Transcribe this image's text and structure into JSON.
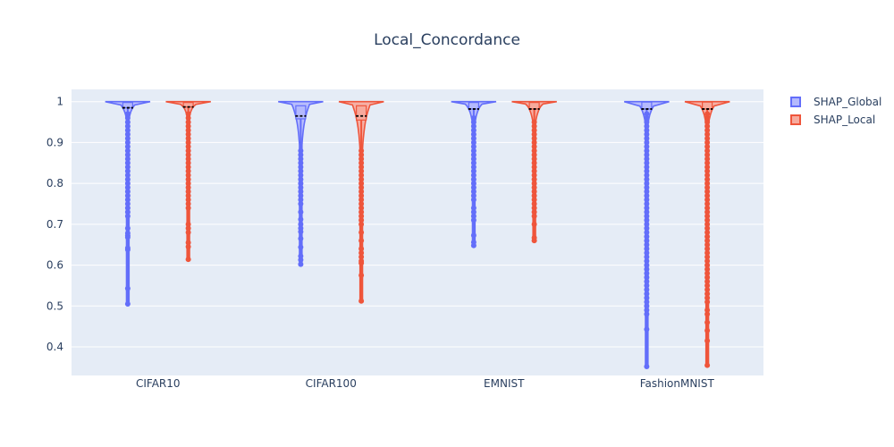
{
  "chart_data": {
    "type": "violin",
    "title": "Local_Concordance",
    "xlabel": "",
    "ylabel": "",
    "categories": [
      "CIFAR10",
      "CIFAR100",
      "EMNIST",
      "FashionMNIST"
    ],
    "ylim": [
      0.33,
      1.03
    ],
    "yticks": [
      0.4,
      0.5,
      0.6,
      0.7,
      0.8,
      0.9,
      1
    ],
    "ytick_labels": [
      "0.4",
      "0.5",
      "0.6",
      "0.7",
      "0.8",
      "0.9",
      "1"
    ],
    "grid": true,
    "legend_position": "top-right",
    "series": [
      {
        "name": "SHAP_Global",
        "color": "#636efa",
        "fill": "#b4b9fd",
        "stats": [
          {
            "category": "CIFAR10",
            "median": 0.985,
            "q1": 0.985,
            "q3": 0.998,
            "min": 0.505,
            "max": 1.0,
            "outliers": [
              0.505,
              0.543,
              0.638,
              0.642,
              0.668,
              0.672,
              0.678,
              0.69,
              0.72,
              0.73,
              0.74,
              0.75,
              0.76,
              0.77,
              0.78,
              0.79,
              0.8,
              0.81,
              0.82,
              0.83,
              0.84,
              0.85,
              0.86,
              0.87,
              0.88,
              0.89,
              0.9,
              0.91,
              0.92,
              0.93,
              0.94,
              0.95,
              0.96,
              0.97
            ]
          },
          {
            "category": "CIFAR100",
            "median": 0.965,
            "q1": 0.958,
            "q3": 0.99,
            "min": 0.602,
            "max": 1.0,
            "outliers": [
              0.602,
              0.613,
              0.622,
              0.644,
              0.665,
              0.682,
              0.69,
              0.7,
              0.712,
              0.73,
              0.75,
              0.76,
              0.77,
              0.78,
              0.79,
              0.8,
              0.81,
              0.82,
              0.83,
              0.84,
              0.85,
              0.86,
              0.87,
              0.88
            ]
          },
          {
            "category": "EMNIST",
            "median": 0.982,
            "q1": 0.982,
            "q3": 0.998,
            "min": 0.648,
            "max": 1.0,
            "outliers": [
              0.648,
              0.656,
              0.673,
              0.71,
              0.72,
              0.73,
              0.74,
              0.76,
              0.77,
              0.78,
              0.79,
              0.8,
              0.81,
              0.82,
              0.83,
              0.84,
              0.85,
              0.86,
              0.87,
              0.88,
              0.89,
              0.9,
              0.91,
              0.92,
              0.93,
              0.94,
              0.95,
              0.96
            ]
          },
          {
            "category": "FashionMNIST",
            "median": 0.982,
            "q1": 0.982,
            "q3": 0.999,
            "min": 0.352,
            "max": 1.0,
            "outliers": [
              0.352,
              0.443,
              0.48,
              0.49,
              0.5,
              0.51,
              0.52,
              0.53,
              0.54,
              0.55,
              0.56,
              0.57,
              0.58,
              0.59,
              0.6,
              0.61,
              0.62,
              0.63,
              0.64,
              0.65,
              0.66,
              0.67,
              0.68,
              0.69,
              0.7,
              0.71,
              0.72,
              0.73,
              0.74,
              0.75,
              0.76,
              0.77,
              0.78,
              0.79,
              0.8,
              0.81,
              0.82,
              0.83,
              0.84,
              0.85,
              0.86,
              0.87,
              0.88,
              0.89,
              0.9,
              0.91,
              0.92,
              0.93,
              0.94,
              0.95,
              0.96,
              0.97
            ]
          }
        ]
      },
      {
        "name": "SHAP_Local",
        "color": "#ef553b",
        "fill": "#f7aa9d",
        "stats": [
          {
            "category": "CIFAR10",
            "median": 0.987,
            "q1": 0.987,
            "q3": 0.998,
            "min": 0.614,
            "max": 1.0,
            "outliers": [
              0.614,
              0.645,
              0.655,
              0.68,
              0.69,
              0.7,
              0.74,
              0.75,
              0.76,
              0.77,
              0.78,
              0.79,
              0.8,
              0.81,
              0.82,
              0.83,
              0.84,
              0.85,
              0.86,
              0.87,
              0.88,
              0.89,
              0.9,
              0.91,
              0.92,
              0.93,
              0.94,
              0.95,
              0.96,
              0.97
            ]
          },
          {
            "category": "CIFAR100",
            "median": 0.965,
            "q1": 0.955,
            "q3": 0.99,
            "min": 0.512,
            "max": 1.0,
            "outliers": [
              0.512,
              0.575,
              0.605,
              0.61,
              0.62,
              0.63,
              0.64,
              0.66,
              0.68,
              0.7,
              0.71,
              0.72,
              0.73,
              0.74,
              0.75,
              0.76,
              0.77,
              0.78,
              0.79,
              0.8,
              0.81,
              0.82,
              0.83,
              0.84,
              0.85,
              0.86,
              0.87,
              0.88
            ]
          },
          {
            "category": "EMNIST",
            "median": 0.982,
            "q1": 0.982,
            "q3": 0.998,
            "min": 0.66,
            "max": 1.0,
            "outliers": [
              0.66,
              0.667,
              0.7,
              0.72,
              0.73,
              0.74,
              0.75,
              0.76,
              0.77,
              0.78,
              0.79,
              0.8,
              0.81,
              0.82,
              0.83,
              0.84,
              0.85,
              0.86,
              0.87,
              0.88,
              0.89,
              0.9,
              0.91,
              0.92,
              0.93,
              0.94,
              0.95
            ]
          },
          {
            "category": "FashionMNIST",
            "median": 0.982,
            "q1": 0.982,
            "q3": 0.999,
            "min": 0.355,
            "max": 1.0,
            "outliers": [
              0.355,
              0.415,
              0.44,
              0.46,
              0.48,
              0.49,
              0.51,
              0.52,
              0.53,
              0.54,
              0.55,
              0.56,
              0.57,
              0.58,
              0.59,
              0.6,
              0.61,
              0.62,
              0.63,
              0.64,
              0.65,
              0.66,
              0.67,
              0.68,
              0.69,
              0.7,
              0.71,
              0.72,
              0.73,
              0.74,
              0.75,
              0.76,
              0.77,
              0.78,
              0.79,
              0.8,
              0.81,
              0.82,
              0.83,
              0.84,
              0.85,
              0.86,
              0.87,
              0.88,
              0.89,
              0.9,
              0.91,
              0.92,
              0.93,
              0.94,
              0.95,
              0.96,
              0.97
            ]
          }
        ]
      }
    ]
  }
}
